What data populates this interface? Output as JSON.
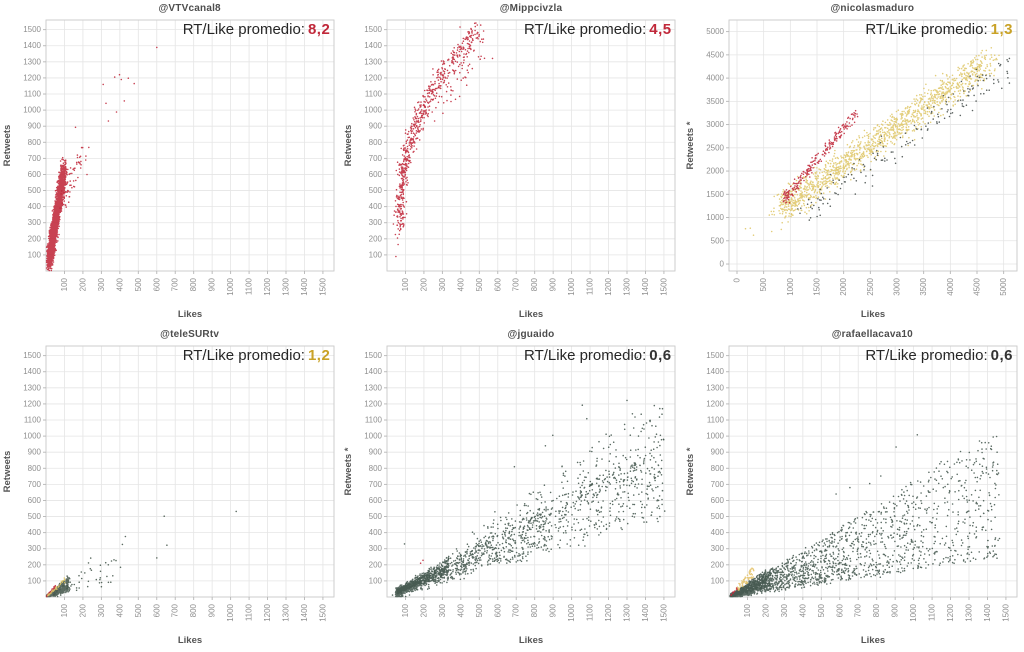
{
  "page": {
    "background": "#ffffff"
  },
  "chart_data": [
    {
      "type": "scatter",
      "title": "@VTVcanal8",
      "xlabel": "Likes",
      "ylabel": "Retweets",
      "xlim": [
        0,
        1560
      ],
      "ylim": [
        0,
        1560
      ],
      "x_ticks": [
        100,
        200,
        300,
        400,
        500,
        600,
        700,
        800,
        900,
        1000,
        1100,
        1200,
        1300,
        1400,
        1500
      ],
      "y_ticks": [
        100,
        200,
        300,
        400,
        500,
        600,
        700,
        800,
        900,
        1000,
        1100,
        1200,
        1300,
        1400,
        1500
      ],
      "grid": true,
      "annotation": {
        "label": "RT/Like promedio:",
        "value": "8,2",
        "color": "#c0283a"
      },
      "summary": "Very steep dense red band: likes 15-130 with retweets 50-780; few outliers near (300-480, 930-1220) and (600,1390).",
      "series": [
        {
          "name": "dense-band",
          "model": "band",
          "color": "#c0283a",
          "count": 2600,
          "tpow": 1.15,
          "x0": 18,
          "xspan": 80,
          "xpow": 1,
          "xnoise": 16,
          "y0": 70,
          "yspan": 560,
          "ypow": 1,
          "ynoise": 70
        },
        {
          "name": "mid-scatter",
          "model": "band",
          "color": "#c0283a",
          "count": 60,
          "tpow": 1,
          "x0": 85,
          "xspan": 115,
          "xpow": 1,
          "xnoise": 22,
          "y0": 400,
          "yspan": 350,
          "ypow": 1,
          "ynoise": 70
        },
        {
          "name": "outliers",
          "model": "points",
          "color": "#c0283a",
          "points": [
            [
              160,
              893
            ],
            [
              310,
              1160
            ],
            [
              325,
              1042
            ],
            [
              338,
              932
            ],
            [
              372,
              1205
            ],
            [
              382,
              988
            ],
            [
              398,
              1220
            ],
            [
              408,
              1190
            ],
            [
              424,
              1057
            ],
            [
              446,
              1198
            ],
            [
              478,
              1165
            ],
            [
              600,
              1390
            ],
            [
              232,
              768
            ],
            [
              215,
              690
            ],
            [
              222,
              600
            ],
            [
              188,
              640
            ]
          ]
        }
      ]
    },
    {
      "type": "scatter",
      "title": "@Mippcivzla",
      "xlabel": "Likes",
      "ylabel": "Retweets",
      "xlim": [
        0,
        1560
      ],
      "ylim": [
        0,
        1560
      ],
      "x_ticks": [
        100,
        200,
        300,
        400,
        500,
        600,
        700,
        800,
        900,
        1000,
        1100,
        1200,
        1300,
        1400,
        1500
      ],
      "y_ticks": [
        100,
        200,
        300,
        400,
        500,
        600,
        700,
        800,
        900,
        1000,
        1100,
        1200,
        1300,
        1400,
        1500
      ],
      "grid": true,
      "annotation": {
        "label": "RT/Like promedio:",
        "value": "4,5",
        "color": "#c0283a"
      },
      "summary": "Steep curved red scatter from (60,180) rising to (550,1500); densest between likes 100-250 and retweets 400-1100.",
      "series": [
        {
          "name": "main-curve",
          "model": "band",
          "color": "#c0283a",
          "count": 620,
          "tpow": 1,
          "x0": 70,
          "xspan": 430,
          "xpow": 2.2,
          "xnoise": 28,
          "y0": 285,
          "yspan": 1215,
          "ypow": 0.92,
          "ynoise": 80
        },
        {
          "name": "upper-scatter",
          "model": "band",
          "color": "#c0283a",
          "count": 70,
          "tpow": 1,
          "x0": 190,
          "xspan": 320,
          "xpow": 1,
          "xnoise": 55,
          "y0": 950,
          "yspan": 450,
          "ypow": 1,
          "ynoise": 110
        },
        {
          "name": "low-tail",
          "model": "points",
          "color": "#c0283a",
          "points": [
            [
              60,
              165
            ],
            [
              57,
              205
            ],
            [
              66,
              228
            ],
            [
              74,
              262
            ],
            [
              62,
              300
            ],
            [
              85,
              332
            ],
            [
              48,
              90
            ]
          ]
        }
      ]
    },
    {
      "type": "scatter",
      "title": "@nicolasmaduro",
      "xlabel": "Likes",
      "ylabel": "Retweets *",
      "xlim": [
        -150,
        5250
      ],
      "ylim": [
        -150,
        5250
      ],
      "x_ticks": [
        0,
        500,
        1000,
        1500,
        2000,
        2500,
        3000,
        3500,
        4000,
        4500,
        5000
      ],
      "y_ticks": [
        0,
        500,
        1000,
        1500,
        2000,
        2500,
        3000,
        3500,
        4000,
        4500,
        5000
      ],
      "grid": true,
      "annotation": {
        "label": "RT/Like promedio:",
        "value": "1,3",
        "color": "#c9a227"
      },
      "summary": "Diagonal band from (800,1100) to (4900,4600): gold points dominate, red points hug the upper-left edge (900-2200 likes), dark points trail the lower-right edge.",
      "series": [
        {
          "name": "gold-band",
          "model": "band",
          "color": "#dfc76a",
          "count": 1400,
          "tpow": 1.2,
          "x0": 850,
          "xspan": 3900,
          "xpow": 1,
          "xnoise": 260,
          "y0": 1200,
          "yspan": 3200,
          "ypow": 1,
          "ynoise": 300
        },
        {
          "name": "red-edge",
          "model": "band",
          "color": "#c0283a",
          "count": 230,
          "tpow": 1.1,
          "x0": 880,
          "xspan": 1350,
          "xpow": 1,
          "xnoise": 70,
          "y0": 1380,
          "yspan": 1850,
          "ypow": 1,
          "ynoise": 120
        },
        {
          "name": "dark-edge",
          "model": "band",
          "color": "#474f4c",
          "count": 170,
          "tpow": 0.95,
          "x0": 1250,
          "xspan": 3750,
          "xpow": 1,
          "xnoise": 300,
          "y0": 1080,
          "yspan": 3150,
          "ypow": 1,
          "ynoise": 280
        },
        {
          "name": "low-outliers",
          "model": "points",
          "color": "#dfc76a",
          "points": [
            [
              250,
              770
            ],
            [
              310,
              620
            ],
            [
              650,
              700
            ],
            [
              700,
              1060
            ],
            [
              830,
              745
            ],
            [
              1020,
              1070
            ],
            [
              160,
              760
            ]
          ]
        }
      ]
    },
    {
      "type": "scatter",
      "title": "@teleSURtv",
      "xlabel": "Likes",
      "ylabel": "Retweets",
      "xlim": [
        0,
        1560
      ],
      "ylim": [
        0,
        1560
      ],
      "x_ticks": [
        100,
        200,
        300,
        400,
        500,
        600,
        700,
        800,
        900,
        1000,
        1100,
        1200,
        1300,
        1400,
        1500
      ],
      "y_ticks": [
        100,
        200,
        300,
        400,
        500,
        600,
        700,
        800,
        900,
        1000,
        1100,
        1200,
        1300,
        1400,
        1500
      ],
      "grid": true,
      "annotation": {
        "label": "RT/Like promedio:",
        "value": "1,2",
        "color": "#c9a227"
      },
      "summary": "Tiny dense cluster at the origin (likes and retweets below ~130) mixing dark, red and gold points; sparse dark outliers out to (1030,530).",
      "series": [
        {
          "name": "origin-cluster",
          "model": "fan",
          "color": "#45584c",
          "count": 800,
          "x0": 4,
          "xspan": 120,
          "xpow": 1.9,
          "xnoise": 6,
          "rmin": 0.3,
          "rspan": 0.75,
          "rpow": 1,
          "ynoise": 8
        },
        {
          "name": "sparse-spread",
          "model": "fan",
          "color": "#45584c",
          "count": 55,
          "x0": 40,
          "xspan": 380,
          "xpow": 1.8,
          "xnoise": 0,
          "rmin": 0.25,
          "rspan": 0.55,
          "rpow": 1,
          "ynoise": 15
        },
        {
          "name": "red-edge",
          "model": "fan",
          "color": "#c0283a",
          "count": 45,
          "x0": 4,
          "xspan": 48,
          "xpow": 1.1,
          "xnoise": 0,
          "rmin": 1.05,
          "rspan": 0.5,
          "rpow": 1,
          "ynoise": 5
        },
        {
          "name": "gold-edge",
          "model": "fan",
          "color": "#dfc76a",
          "count": 40,
          "x0": 8,
          "xspan": 100,
          "xpow": 1.2,
          "xnoise": 0,
          "rmin": 0.85,
          "rspan": 0.35,
          "rpow": 1,
          "ynoise": 6
        },
        {
          "name": "outliers",
          "model": "points",
          "color": "#45584c",
          "points": [
            [
              640,
              502
            ],
            [
              655,
              322
            ],
            [
              600,
              243
            ],
            [
              1030,
              532
            ],
            [
              430,
              376
            ],
            [
              242,
              242
            ],
            [
              230,
              212
            ],
            [
              295,
              160
            ],
            [
              330,
              128
            ],
            [
              362,
              132
            ],
            [
              300,
              64
            ],
            [
              210,
              150
            ],
            [
              180,
              92
            ]
          ]
        }
      ]
    },
    {
      "type": "scatter",
      "title": "@jguaido",
      "xlabel": "Likes",
      "ylabel": "Retweets *",
      "xlim": [
        0,
        1560
      ],
      "ylim": [
        0,
        1560
      ],
      "x_ticks": [
        100,
        200,
        300,
        400,
        500,
        600,
        700,
        800,
        900,
        1000,
        1100,
        1200,
        1300,
        1400,
        1500
      ],
      "y_ticks": [
        100,
        200,
        300,
        400,
        500,
        600,
        700,
        800,
        900,
        1000,
        1100,
        1200,
        1300,
        1400,
        1500
      ],
      "grid": true,
      "annotation": {
        "label": "RT/Like promedio:",
        "value": "0,6",
        "color": "#333333"
      },
      "summary": "Dark slate fan from the origin: dense streak below likes 350, widening to retweets 400-1000 near likes 1500; stray points up to (1355,1490); two red dots near (190,220).",
      "series": [
        {
          "name": "core-fan",
          "model": "fan",
          "color": "#44584e",
          "count": 1500,
          "x0": 55,
          "xspan": 1445,
          "xpow": 2.0,
          "xnoise": 10,
          "rmin": 0.33,
          "rspan": 0.33,
          "rpow": 1,
          "ynoise": 30
        },
        {
          "name": "upper-fan",
          "model": "fan",
          "color": "#44584e",
          "count": 240,
          "x0": 350,
          "xspan": 1150,
          "xpow": 1.1,
          "xnoise": 0,
          "rmin": 0.52,
          "rspan": 0.33,
          "rpow": 1,
          "ynoise": 55
        },
        {
          "name": "origin-streak",
          "model": "fan",
          "color": "#44584e",
          "count": 450,
          "x0": 55,
          "xspan": 280,
          "xpow": 1.4,
          "xnoise": 0,
          "rmin": 0.45,
          "rspan": 0.3,
          "rpow": 1,
          "ynoise": 12
        },
        {
          "name": "outliers",
          "model": "points",
          "color": "#44584e",
          "points": [
            [
              1355,
              1490
            ],
            [
              1300,
              1222
            ],
            [
              1058,
              1192
            ],
            [
              1425,
              1098
            ],
            [
              1082,
              1108
            ],
            [
              898,
              1005
            ],
            [
              1460,
              1012
            ],
            [
              1228,
              962
            ],
            [
              858,
              940
            ],
            [
              690,
              810
            ],
            [
              30,
              12
            ],
            [
              95,
              330
            ]
          ]
        },
        {
          "name": "red-dots",
          "model": "points",
          "color": "#c0283a",
          "points": [
            [
              195,
              228
            ],
            [
              182,
              210
            ]
          ]
        }
      ]
    },
    {
      "type": "scatter",
      "title": "@rafaellacava10",
      "xlabel": "Likes",
      "ylabel": "Retweets *",
      "xlim": [
        0,
        1560
      ],
      "ylim": [
        0,
        1560
      ],
      "x_ticks": [
        100,
        200,
        300,
        400,
        500,
        600,
        700,
        800,
        900,
        1000,
        1100,
        1200,
        1300,
        1400,
        1500
      ],
      "y_ticks": [
        100,
        200,
        300,
        400,
        500,
        600,
        700,
        800,
        900,
        1000,
        1100,
        1200,
        1300,
        1400,
        1500
      ],
      "grid": true,
      "annotation": {
        "label": "RT/Like promedio:",
        "value": "0,6",
        "color": "#333333"
      },
      "summary": "Wide dark slate fan from the origin, very dense under likes 300, spreading to retweets 100-1000 near likes 1450; small gold blob near (40-140, 40-200); a few red dots at the origin.",
      "series": [
        {
          "name": "core-fan",
          "model": "fan",
          "color": "#44584e",
          "count": 2300,
          "x0": 15,
          "xspan": 1445,
          "xpow": 2.4,
          "xnoise": 8,
          "rmin": 0.17,
          "rspan": 0.55,
          "rpow": 1.25,
          "ynoise": 15
        },
        {
          "name": "origin-dense",
          "model": "fan",
          "color": "#44584e",
          "count": 500,
          "x0": 10,
          "xspan": 220,
          "xpow": 1.5,
          "xnoise": 0,
          "rmin": 0.3,
          "rspan": 0.55,
          "rpow": 1,
          "ynoise": 8
        },
        {
          "name": "gold-blob",
          "model": "fan",
          "color": "#e4c168",
          "count": 65,
          "x0": 38,
          "xspan": 100,
          "xpow": 1,
          "xnoise": 0,
          "rmin": 0.85,
          "rspan": 0.6,
          "rpow": 1,
          "ynoise": 8
        },
        {
          "name": "red-dots",
          "model": "fan",
          "color": "#c0283a",
          "count": 10,
          "x0": 8,
          "xspan": 40,
          "xpow": 1,
          "xnoise": 0,
          "rmin": 1.0,
          "rspan": 0.4,
          "rpow": 1,
          "ynoise": 4
        },
        {
          "name": "outliers",
          "model": "points",
          "color": "#44584e",
          "points": [
            [
              1020,
              1008
            ],
            [
              1305,
              852
            ],
            [
              1452,
              900
            ],
            [
              1382,
              858
            ],
            [
              905,
              932
            ],
            [
              822,
              752
            ],
            [
              762,
              705
            ],
            [
              1460,
              770
            ],
            [
              655,
              680
            ],
            [
              580,
              640
            ]
          ]
        }
      ]
    }
  ]
}
